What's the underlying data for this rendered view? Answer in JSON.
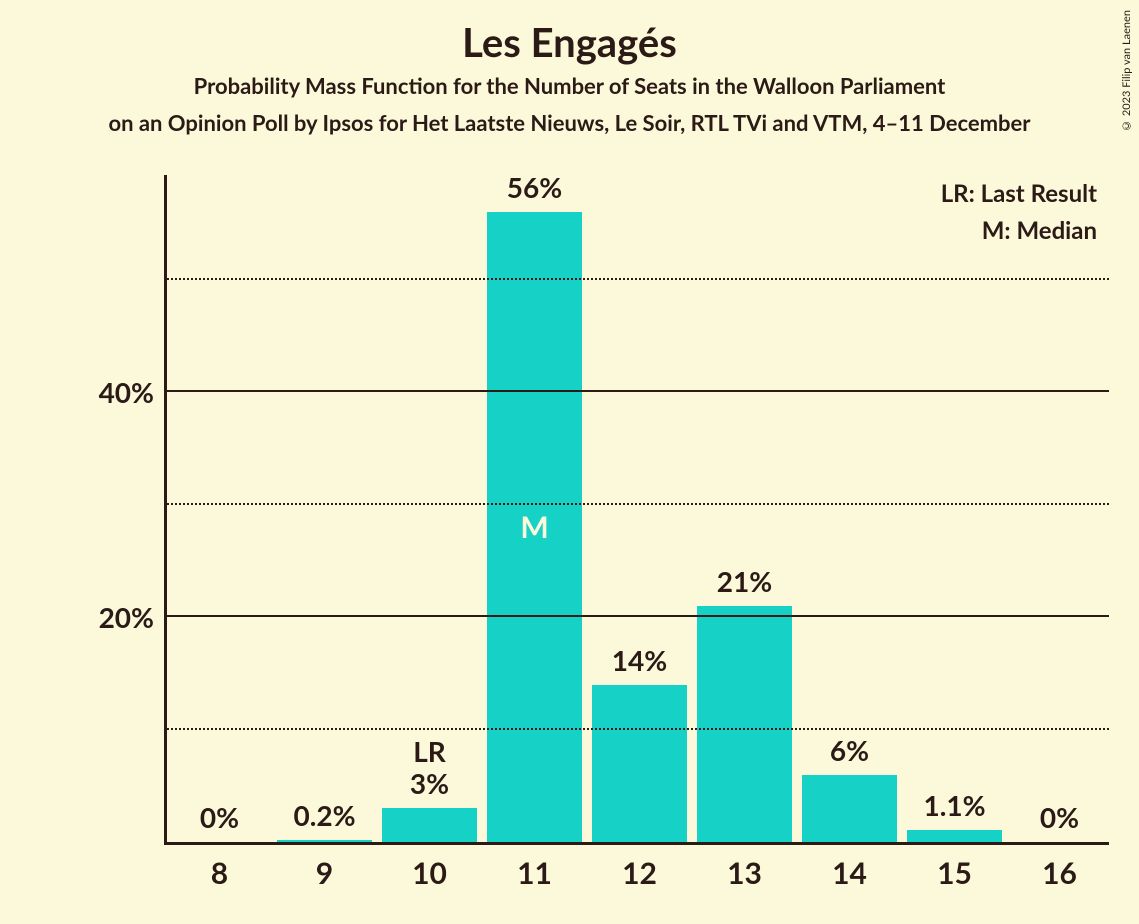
{
  "copyright": "© 2023 Filip van Laenen",
  "title": "Les Engagés",
  "subtitle1": "Probability Mass Function for the Number of Seats in the Walloon Parliament",
  "subtitle2": "on an Opinion Poll by Ipsos for Het Laatste Nieuws, Le Soir, RTL TVi and VTM, 4–11 December",
  "legend": {
    "lr": "LR: Last Result",
    "m": "M: Median"
  },
  "chart": {
    "type": "bar",
    "background_color": "#fbf9da",
    "bar_color": "#16d1c6",
    "text_color": "#2b1a16",
    "median_text_color": "#fbf9da",
    "ylim": [
      0,
      56
    ],
    "y_ticks_solid": [
      20,
      40
    ],
    "y_ticks_dotted": [
      10,
      30,
      50
    ],
    "y_tick_labels": {
      "20": "20%",
      "40": "40%"
    },
    "bar_width_ratio": 0.9,
    "bars": [
      {
        "x": "8",
        "value": 0,
        "label": "0%"
      },
      {
        "x": "9",
        "value": 0.2,
        "label": "0.2%"
      },
      {
        "x": "10",
        "value": 3,
        "label": "3%",
        "extra_above": "LR"
      },
      {
        "x": "11",
        "value": 56,
        "label": "56%",
        "median": "M"
      },
      {
        "x": "12",
        "value": 14,
        "label": "14%"
      },
      {
        "x": "13",
        "value": 21,
        "label": "21%"
      },
      {
        "x": "14",
        "value": 6,
        "label": "6%"
      },
      {
        "x": "15",
        "value": 1.1,
        "label": "1.1%"
      },
      {
        "x": "16",
        "value": 0,
        "label": "0%"
      }
    ],
    "title_fontsize": 40,
    "subtitle_fontsize": 22,
    "axis_fontsize": 28,
    "legend_fontsize": 24
  }
}
